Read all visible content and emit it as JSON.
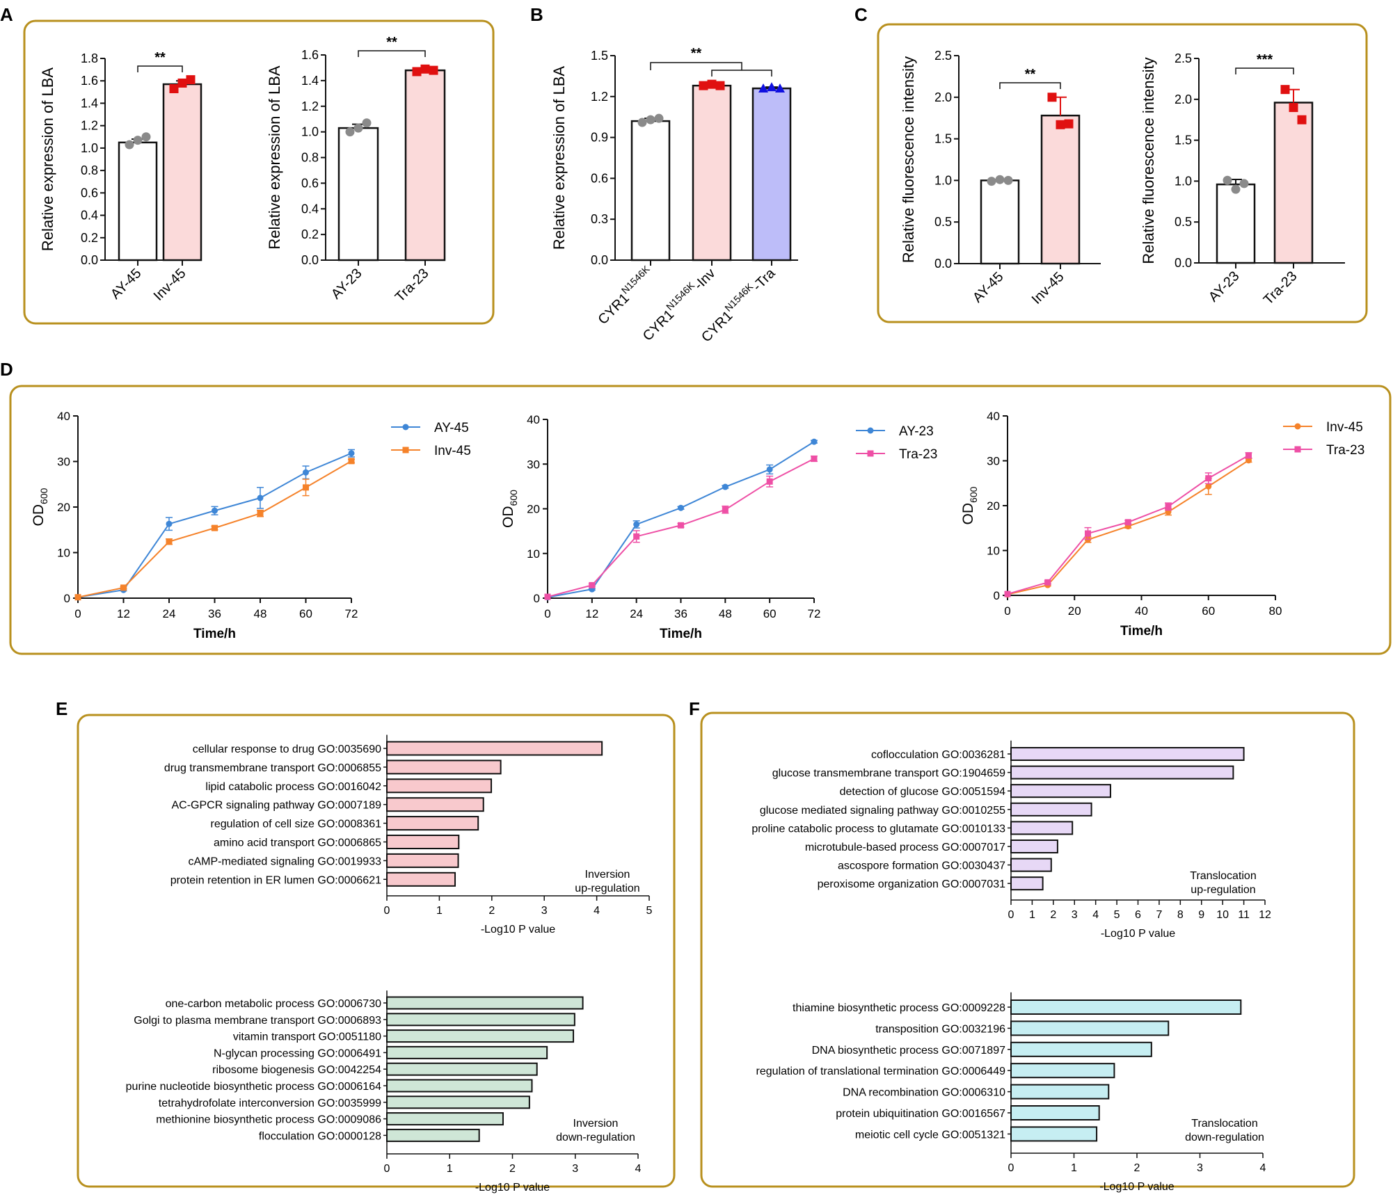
{
  "panel_labels": [
    "A",
    "B",
    "C",
    "D",
    "E",
    "F"
  ],
  "colors": {
    "frame": "#B8901E",
    "white_bar": "#ffffff",
    "pink_bar": "#FBDADA",
    "purple_bar": "#BDBDF9",
    "red_point": "#E01010",
    "gray_point": "#8A8A8A",
    "blue_point": "#1010E0",
    "blue_line": "#3E86D6",
    "orange_line": "#F5822A",
    "magenta_line": "#EE4FA5",
    "pink_go": "#F8C9CD",
    "green_go": "#CFE6D7",
    "lavender_go": "#E7D8F6",
    "cyan_go": "#C6EEF2"
  },
  "chart_data": [
    {
      "id": "A1",
      "type": "bar",
      "panel": "A",
      "ylabel": "Relative expression of LBA",
      "ylim": [
        0,
        1.8
      ],
      "yticks": [
        0.0,
        0.2,
        0.4,
        0.6,
        0.8,
        1.0,
        1.2,
        1.4,
        1.6,
        1.8
      ],
      "categories": [
        "AY-45",
        "Inv-45"
      ],
      "values": [
        1.05,
        1.57
      ],
      "errors": [
        0.03,
        0.03
      ],
      "points": [
        [
          1.03,
          1.07,
          1.1
        ],
        [
          1.53,
          1.58,
          1.61
        ]
      ],
      "significance": [
        {
          "pair": [
            0,
            1
          ],
          "label": "**"
        }
      ]
    },
    {
      "id": "A2",
      "type": "bar",
      "panel": "A",
      "ylabel": "Relative expression of LBA",
      "ylim": [
        0,
        1.6
      ],
      "yticks": [
        0.0,
        0.2,
        0.4,
        0.6,
        0.8,
        1.0,
        1.2,
        1.4,
        1.6
      ],
      "categories": [
        "AY-23",
        "Tra-23"
      ],
      "values": [
        1.03,
        1.48
      ],
      "errors": [
        0.03,
        0.02
      ],
      "points": [
        [
          1.0,
          1.03,
          1.07
        ],
        [
          1.47,
          1.49,
          1.48
        ]
      ],
      "significance": [
        {
          "pair": [
            0,
            1
          ],
          "label": "**"
        }
      ]
    },
    {
      "id": "B",
      "type": "bar",
      "panel": "B",
      "ylabel": "Relative expression of LBA",
      "ylim": [
        0,
        1.5
      ],
      "yticks": [
        0.0,
        0.3,
        0.6,
        0.9,
        1.2,
        1.5
      ],
      "categories": [
        {
          "base": "CYR1",
          "sup": "N1546K",
          "suffix": ""
        },
        {
          "base": "CYR1",
          "sup": "N1546K",
          "suffix": "-Inv"
        },
        {
          "base": "CYR1",
          "sup": "N1546K",
          "suffix": "-Tra"
        }
      ],
      "values": [
        1.02,
        1.28,
        1.26
      ],
      "errors": [
        0.02,
        0.01,
        0.01
      ],
      "points": [
        [
          1.01,
          1.03,
          1.04
        ],
        [
          1.28,
          1.29,
          1.28
        ],
        [
          1.26,
          1.27,
          1.26
        ]
      ],
      "significance": [
        {
          "label": "**",
          "from": 0,
          "to": [
            1,
            2
          ]
        }
      ]
    },
    {
      "id": "C1",
      "type": "bar",
      "panel": "C",
      "ylabel": "Relative fluorescence intensity",
      "ylim": [
        0,
        2.5
      ],
      "yticks": [
        0.0,
        0.5,
        1.0,
        1.5,
        2.0,
        2.5
      ],
      "categories": [
        "AY-45",
        "Inv-45"
      ],
      "values": [
        1.0,
        1.78
      ],
      "errors": [
        0.01,
        0.22
      ],
      "points": [
        [
          0.99,
          1.01,
          1.0
        ],
        [
          2.0,
          1.67,
          1.68
        ]
      ],
      "significance": [
        {
          "pair": [
            0,
            1
          ],
          "label": "**"
        }
      ]
    },
    {
      "id": "C2",
      "type": "bar",
      "panel": "C",
      "ylabel": "Relative fluorescence intensity",
      "ylim": [
        0,
        2.5
      ],
      "yticks": [
        0.0,
        0.5,
        1.0,
        1.5,
        2.0,
        2.5
      ],
      "categories": [
        "AY-23",
        "Tra-23"
      ],
      "values": [
        0.96,
        1.96
      ],
      "errors": [
        0.06,
        0.16
      ],
      "points": [
        [
          1.01,
          0.9,
          0.97
        ],
        [
          2.12,
          1.9,
          1.75
        ]
      ],
      "significance": [
        {
          "pair": [
            0,
            1
          ],
          "label": "***"
        }
      ]
    },
    {
      "id": "D1",
      "type": "line",
      "panel": "D",
      "xlabel": "Time/h",
      "ylabel_base": "OD",
      "ylabel_sub": "600",
      "xlim": [
        0,
        72
      ],
      "xticks": [
        0,
        12,
        24,
        36,
        48,
        60,
        72
      ],
      "ylim": [
        0,
        40
      ],
      "yticks": [
        0,
        10,
        20,
        30,
        40
      ],
      "x": [
        0,
        12,
        24,
        36,
        48,
        60,
        72
      ],
      "series": [
        {
          "name": "AY-45",
          "marker": "circle",
          "values": [
            0.2,
            1.8,
            16.3,
            19.2,
            22.0,
            27.6,
            31.8
          ],
          "errors": [
            0,
            0.2,
            1.4,
            0.9,
            2.3,
            1.4,
            0.8
          ]
        },
        {
          "name": "Inv-45",
          "marker": "square",
          "values": [
            0.2,
            2.3,
            12.4,
            15.4,
            18.6,
            24.3,
            30.1
          ],
          "errors": [
            0,
            0.2,
            0.6,
            0.4,
            0.7,
            1.8,
            0.4
          ]
        }
      ]
    },
    {
      "id": "D2",
      "type": "line",
      "panel": "D",
      "xlabel": "Time/h",
      "ylabel_base": "OD",
      "ylabel_sub": "600",
      "xlim": [
        0,
        72
      ],
      "xticks": [
        0,
        12,
        24,
        36,
        48,
        60,
        72
      ],
      "ylim": [
        0,
        40
      ],
      "yticks": [
        0,
        10,
        20,
        30,
        40
      ],
      "x": [
        0,
        12,
        24,
        36,
        48,
        60,
        72
      ],
      "series": [
        {
          "name": "AY-23",
          "marker": "circle",
          "values": [
            0.2,
            2.0,
            16.5,
            20.2,
            24.9,
            28.8,
            35.0
          ],
          "errors": [
            0,
            0.2,
            0.8,
            0.3,
            0.3,
            1.0,
            0.3
          ]
        },
        {
          "name": "Tra-23",
          "marker": "square",
          "values": [
            0.3,
            2.9,
            13.8,
            16.3,
            19.8,
            26.1,
            31.2
          ],
          "errors": [
            0,
            0.3,
            1.3,
            0.4,
            0.8,
            1.2,
            0.6
          ]
        }
      ]
    },
    {
      "id": "D3",
      "type": "line",
      "panel": "D",
      "xlabel": "Time/h",
      "ylabel_base": "OD",
      "ylabel_sub": "600",
      "xlim": [
        0,
        80
      ],
      "xticks": [
        0,
        20,
        40,
        60,
        80
      ],
      "ylim": [
        0,
        40
      ],
      "yticks": [
        0,
        10,
        20,
        30,
        40
      ],
      "x": [
        0,
        12,
        24,
        36,
        48,
        60,
        72
      ],
      "series": [
        {
          "name": "Inv-45",
          "marker": "circle",
          "values": [
            0.2,
            2.3,
            12.4,
            15.4,
            18.6,
            24.3,
            30.1
          ],
          "errors": [
            0,
            0.2,
            0.6,
            0.4,
            0.7,
            1.8,
            0.4
          ]
        },
        {
          "name": "Tra-23",
          "marker": "square",
          "values": [
            0.3,
            2.9,
            13.8,
            16.3,
            19.8,
            26.1,
            31.2
          ],
          "errors": [
            0,
            0.3,
            1.3,
            0.4,
            0.8,
            1.2,
            0.6
          ]
        }
      ]
    },
    {
      "id": "E1",
      "type": "bar_horizontal",
      "panel": "E",
      "xlabel": "-Log10 P value",
      "xlim": [
        0,
        5
      ],
      "xticks": [
        0,
        1,
        2,
        3,
        4,
        5
      ],
      "note": [
        "Inversion",
        "up-regulation"
      ],
      "categories": [
        "cellular response to drug GO:0035690",
        "drug transmembrane transport GO:0006855",
        "lipid catabolic process GO:0016042",
        "AC-GPCR signaling pathway GO:0007189",
        "regulation of cell size GO:0008361",
        "amino acid transport GO:0006865",
        "cAMP-mediated signaling GO:0019933",
        "protein retention in ER lumen GO:0006621"
      ],
      "values": [
        4.1,
        2.17,
        1.99,
        1.84,
        1.74,
        1.37,
        1.36,
        1.3
      ]
    },
    {
      "id": "E2",
      "type": "bar_horizontal",
      "panel": "E",
      "xlabel": "-Log10 P value",
      "xlim": [
        0,
        4
      ],
      "xticks": [
        0,
        1,
        2,
        3,
        4
      ],
      "note": [
        "Inversion",
        "down-regulation"
      ],
      "categories": [
        "one-carbon metabolic process GO:0006730",
        "Golgi to plasma membrane transport GO:0006893",
        "vitamin transport GO:0051180",
        "N-glycan processing GO:0006491",
        "ribosome biogenesis GO:0042254",
        "purine nucleotide biosynthetic process GO:0006164",
        "tetrahydrofolate interconversion GO:0035999",
        "methionine biosynthetic process GO:0009086",
        "flocculation GO:0000128"
      ],
      "values": [
        3.12,
        2.99,
        2.97,
        2.55,
        2.39,
        2.31,
        2.27,
        1.85,
        1.47
      ]
    },
    {
      "id": "F1",
      "type": "bar_horizontal",
      "panel": "F",
      "xlabel": "-Log10 P value",
      "xlim": [
        0,
        12
      ],
      "xticks": [
        0,
        1,
        2,
        3,
        4,
        5,
        6,
        7,
        8,
        9,
        10,
        11,
        12
      ],
      "note": [
        "Translocation",
        "up-regulation"
      ],
      "categories": [
        "coflocculation GO:0036281",
        "glucose transmembrane transport GO:1904659",
        "detection of glucose GO:0051594",
        "glucose mediated signaling pathway GO:0010255",
        "proline catabolic process to glutamate GO:0010133",
        "microtubule-based process GO:0007017",
        "ascospore formation GO:0030437",
        "peroxisome organization GO:0007031"
      ],
      "values": [
        11.0,
        10.5,
        4.7,
        3.8,
        2.9,
        2.2,
        1.9,
        1.5
      ]
    },
    {
      "id": "F2",
      "type": "bar_horizontal",
      "panel": "F",
      "xlabel": "-Log10 P value",
      "xlim": [
        0,
        4
      ],
      "xticks": [
        0,
        1,
        2,
        3,
        4
      ],
      "note": [
        "Translocation",
        "down-regulation"
      ],
      "categories": [
        "thiamine biosynthetic process GO:0009228",
        "transposition GO:0032196",
        "DNA biosynthetic process GO:0071897",
        "regulation of translational termination GO:0006449",
        "DNA recombination GO:0006310",
        "protein ubiquitination GO:0016567",
        "meiotic cell cycle GO:0051321"
      ],
      "values": [
        3.65,
        2.5,
        2.23,
        1.64,
        1.55,
        1.4,
        1.36
      ]
    }
  ]
}
